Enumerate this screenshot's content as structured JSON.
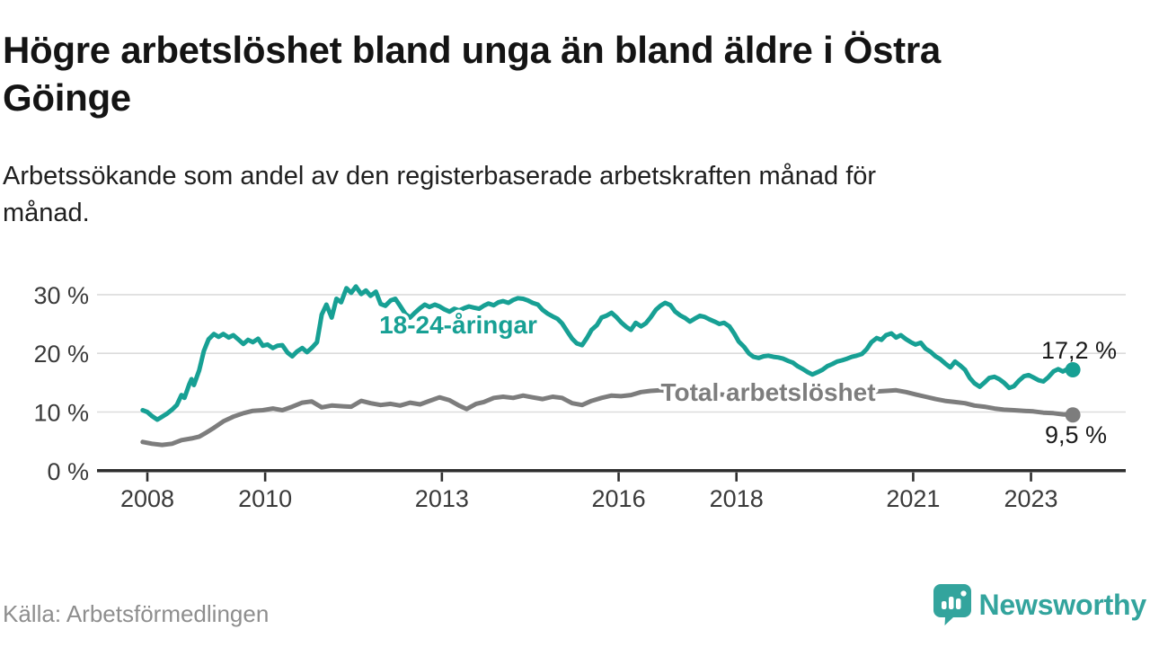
{
  "chart_data": {
    "type": "line",
    "title": "Högre arbetslöshet bland unga än bland äldre i Östra\nGöinge",
    "subtitle": "Arbetssökande som andel av den registerbaserade arbetskraften månad för\nmånad.",
    "source": "Källa: Arbetsförmedlingen",
    "unit": "%",
    "x_axis": {
      "type": "time-years",
      "range": [
        2007.2,
        2024.6
      ]
    },
    "ylim": [
      0,
      33
    ],
    "grid": "horizontal",
    "legend_position": "inline-labels",
    "yticks": [
      {
        "value": 0,
        "label": "0 %"
      },
      {
        "value": 10,
        "label": "10 %"
      },
      {
        "value": 20,
        "label": "20 %"
      },
      {
        "value": 30,
        "label": "30 %"
      }
    ],
    "xticks": [
      {
        "value": 2008,
        "label": "2008"
      },
      {
        "value": 2010,
        "label": "2010"
      },
      {
        "value": 2013,
        "label": "2013"
      },
      {
        "value": 2016,
        "label": "2016"
      },
      {
        "value": 2018,
        "label": "2018"
      },
      {
        "value": 2021,
        "label": "2021"
      },
      {
        "value": 2023,
        "label": "2023"
      }
    ],
    "series": [
      {
        "name": "18-24-åringar",
        "color": "#17a094",
        "end_value": 17.2,
        "end_label": "17,2 %",
        "points": [
          [
            2007.92,
            10.3
          ],
          [
            2008.0,
            10.0
          ],
          [
            2008.08,
            9.3
          ],
          [
            2008.17,
            8.7
          ],
          [
            2008.25,
            9.2
          ],
          [
            2008.33,
            9.7
          ],
          [
            2008.42,
            10.4
          ],
          [
            2008.5,
            11.2
          ],
          [
            2008.58,
            12.9
          ],
          [
            2008.63,
            12.4
          ],
          [
            2008.71,
            14.7
          ],
          [
            2008.75,
            15.6
          ],
          [
            2008.79,
            14.6
          ],
          [
            2008.88,
            17.1
          ],
          [
            2008.96,
            20.4
          ],
          [
            2009.04,
            22.4
          ],
          [
            2009.13,
            23.3
          ],
          [
            2009.21,
            22.8
          ],
          [
            2009.29,
            23.3
          ],
          [
            2009.38,
            22.7
          ],
          [
            2009.46,
            23.1
          ],
          [
            2009.54,
            22.4
          ],
          [
            2009.63,
            21.6
          ],
          [
            2009.71,
            22.3
          ],
          [
            2009.79,
            21.9
          ],
          [
            2009.88,
            22.5
          ],
          [
            2009.96,
            21.3
          ],
          [
            2010.04,
            21.5
          ],
          [
            2010.13,
            20.9
          ],
          [
            2010.21,
            21.3
          ],
          [
            2010.29,
            21.4
          ],
          [
            2010.38,
            20.1
          ],
          [
            2010.46,
            19.5
          ],
          [
            2010.54,
            20.3
          ],
          [
            2010.63,
            20.9
          ],
          [
            2010.71,
            20.2
          ],
          [
            2010.79,
            20.9
          ],
          [
            2010.88,
            21.9
          ],
          [
            2010.96,
            26.6
          ],
          [
            2011.04,
            28.3
          ],
          [
            2011.13,
            26.1
          ],
          [
            2011.21,
            29.3
          ],
          [
            2011.29,
            28.7
          ],
          [
            2011.38,
            31.1
          ],
          [
            2011.46,
            30.3
          ],
          [
            2011.54,
            31.4
          ],
          [
            2011.63,
            30.1
          ],
          [
            2011.71,
            30.7
          ],
          [
            2011.79,
            29.8
          ],
          [
            2011.88,
            30.5
          ],
          [
            2011.96,
            28.4
          ],
          [
            2012.04,
            28.1
          ],
          [
            2012.13,
            29.0
          ],
          [
            2012.21,
            29.3
          ],
          [
            2012.29,
            28.1
          ],
          [
            2012.38,
            26.7
          ],
          [
            2012.46,
            26.1
          ],
          [
            2012.54,
            26.9
          ],
          [
            2012.63,
            27.7
          ],
          [
            2012.71,
            28.3
          ],
          [
            2012.79,
            27.9
          ],
          [
            2012.88,
            28.3
          ],
          [
            2012.96,
            28.0
          ],
          [
            2013.04,
            27.5
          ],
          [
            2013.13,
            27.1
          ],
          [
            2013.21,
            27.6
          ],
          [
            2013.29,
            27.3
          ],
          [
            2013.38,
            27.7
          ],
          [
            2013.46,
            28.0
          ],
          [
            2013.54,
            27.8
          ],
          [
            2013.63,
            27.6
          ],
          [
            2013.71,
            28.1
          ],
          [
            2013.79,
            28.5
          ],
          [
            2013.88,
            28.2
          ],
          [
            2013.96,
            28.7
          ],
          [
            2014.04,
            28.9
          ],
          [
            2014.13,
            28.6
          ],
          [
            2014.21,
            29.1
          ],
          [
            2014.29,
            29.4
          ],
          [
            2014.38,
            29.3
          ],
          [
            2014.46,
            29.0
          ],
          [
            2014.54,
            28.6
          ],
          [
            2014.63,
            28.3
          ],
          [
            2014.71,
            27.4
          ],
          [
            2014.79,
            26.8
          ],
          [
            2014.88,
            26.3
          ],
          [
            2014.96,
            25.9
          ],
          [
            2015.04,
            25.1
          ],
          [
            2015.13,
            23.7
          ],
          [
            2015.21,
            22.5
          ],
          [
            2015.29,
            21.7
          ],
          [
            2015.38,
            21.4
          ],
          [
            2015.46,
            22.6
          ],
          [
            2015.54,
            24.0
          ],
          [
            2015.63,
            24.8
          ],
          [
            2015.71,
            26.1
          ],
          [
            2015.79,
            26.4
          ],
          [
            2015.88,
            26.9
          ],
          [
            2015.96,
            26.2
          ],
          [
            2016.04,
            25.3
          ],
          [
            2016.13,
            24.5
          ],
          [
            2016.21,
            24.0
          ],
          [
            2016.29,
            25.2
          ],
          [
            2016.38,
            24.6
          ],
          [
            2016.46,
            25.1
          ],
          [
            2016.54,
            26.1
          ],
          [
            2016.63,
            27.4
          ],
          [
            2016.71,
            28.1
          ],
          [
            2016.79,
            28.6
          ],
          [
            2016.88,
            28.2
          ],
          [
            2016.96,
            27.1
          ],
          [
            2017.04,
            26.5
          ],
          [
            2017.13,
            26.0
          ],
          [
            2017.21,
            25.4
          ],
          [
            2017.29,
            25.9
          ],
          [
            2017.38,
            26.4
          ],
          [
            2017.46,
            26.2
          ],
          [
            2017.54,
            25.8
          ],
          [
            2017.63,
            25.4
          ],
          [
            2017.71,
            25.0
          ],
          [
            2017.79,
            25.2
          ],
          [
            2017.88,
            24.6
          ],
          [
            2017.96,
            23.4
          ],
          [
            2018.04,
            22.0
          ],
          [
            2018.13,
            21.1
          ],
          [
            2018.21,
            20.0
          ],
          [
            2018.29,
            19.4
          ],
          [
            2018.38,
            19.2
          ],
          [
            2018.46,
            19.5
          ],
          [
            2018.54,
            19.6
          ],
          [
            2018.63,
            19.4
          ],
          [
            2018.71,
            19.3
          ],
          [
            2018.79,
            19.1
          ],
          [
            2018.88,
            18.7
          ],
          [
            2018.96,
            18.4
          ],
          [
            2019.04,
            17.8
          ],
          [
            2019.13,
            17.3
          ],
          [
            2019.21,
            16.8
          ],
          [
            2019.29,
            16.4
          ],
          [
            2019.38,
            16.8
          ],
          [
            2019.46,
            17.2
          ],
          [
            2019.54,
            17.8
          ],
          [
            2019.63,
            18.2
          ],
          [
            2019.71,
            18.6
          ],
          [
            2019.79,
            18.8
          ],
          [
            2019.88,
            19.1
          ],
          [
            2019.96,
            19.4
          ],
          [
            2020.04,
            19.6
          ],
          [
            2020.13,
            19.9
          ],
          [
            2020.21,
            20.7
          ],
          [
            2020.29,
            21.9
          ],
          [
            2020.38,
            22.6
          ],
          [
            2020.46,
            22.3
          ],
          [
            2020.54,
            23.1
          ],
          [
            2020.63,
            23.4
          ],
          [
            2020.71,
            22.7
          ],
          [
            2020.79,
            23.1
          ],
          [
            2020.88,
            22.4
          ],
          [
            2020.96,
            21.9
          ],
          [
            2021.04,
            21.5
          ],
          [
            2021.13,
            21.8
          ],
          [
            2021.21,
            20.8
          ],
          [
            2021.29,
            20.3
          ],
          [
            2021.38,
            19.5
          ],
          [
            2021.46,
            19.0
          ],
          [
            2021.54,
            18.3
          ],
          [
            2021.63,
            17.6
          ],
          [
            2021.71,
            18.6
          ],
          [
            2021.79,
            18.0
          ],
          [
            2021.88,
            17.2
          ],
          [
            2021.96,
            15.8
          ],
          [
            2022.04,
            14.9
          ],
          [
            2022.13,
            14.3
          ],
          [
            2022.21,
            15.0
          ],
          [
            2022.29,
            15.8
          ],
          [
            2022.38,
            16.0
          ],
          [
            2022.46,
            15.6
          ],
          [
            2022.54,
            15.0
          ],
          [
            2022.63,
            14.1
          ],
          [
            2022.71,
            14.4
          ],
          [
            2022.79,
            15.3
          ],
          [
            2022.88,
            16.1
          ],
          [
            2022.96,
            16.3
          ],
          [
            2023.04,
            15.9
          ],
          [
            2023.13,
            15.4
          ],
          [
            2023.21,
            15.2
          ],
          [
            2023.29,
            15.9
          ],
          [
            2023.38,
            16.9
          ],
          [
            2023.46,
            17.3
          ],
          [
            2023.54,
            16.9
          ],
          [
            2023.63,
            17.4
          ],
          [
            2023.71,
            17.2
          ]
        ]
      },
      {
        "name": "Total arbetslöshet",
        "color": "#7d7d7d",
        "end_value": 9.5,
        "end_label": "9,5 %",
        "points": [
          [
            2007.92,
            4.9
          ],
          [
            2008.08,
            4.6
          ],
          [
            2008.25,
            4.4
          ],
          [
            2008.42,
            4.6
          ],
          [
            2008.58,
            5.2
          ],
          [
            2008.75,
            5.5
          ],
          [
            2008.88,
            5.8
          ],
          [
            2009.0,
            6.5
          ],
          [
            2009.13,
            7.3
          ],
          [
            2009.29,
            8.4
          ],
          [
            2009.46,
            9.2
          ],
          [
            2009.63,
            9.8
          ],
          [
            2009.79,
            10.2
          ],
          [
            2009.96,
            10.3
          ],
          [
            2010.13,
            10.6
          ],
          [
            2010.29,
            10.3
          ],
          [
            2010.46,
            10.9
          ],
          [
            2010.63,
            11.6
          ],
          [
            2010.79,
            11.8
          ],
          [
            2010.96,
            10.8
          ],
          [
            2011.13,
            11.1
          ],
          [
            2011.29,
            11.0
          ],
          [
            2011.46,
            10.9
          ],
          [
            2011.63,
            11.9
          ],
          [
            2011.79,
            11.5
          ],
          [
            2011.96,
            11.2
          ],
          [
            2012.13,
            11.4
          ],
          [
            2012.29,
            11.1
          ],
          [
            2012.46,
            11.6
          ],
          [
            2012.63,
            11.3
          ],
          [
            2012.79,
            11.9
          ],
          [
            2012.96,
            12.5
          ],
          [
            2013.13,
            12.0
          ],
          [
            2013.29,
            11.1
          ],
          [
            2013.42,
            10.5
          ],
          [
            2013.58,
            11.4
          ],
          [
            2013.71,
            11.7
          ],
          [
            2013.88,
            12.4
          ],
          [
            2014.04,
            12.6
          ],
          [
            2014.21,
            12.4
          ],
          [
            2014.38,
            12.8
          ],
          [
            2014.54,
            12.5
          ],
          [
            2014.71,
            12.2
          ],
          [
            2014.88,
            12.6
          ],
          [
            2015.04,
            12.4
          ],
          [
            2015.21,
            11.5
          ],
          [
            2015.38,
            11.2
          ],
          [
            2015.54,
            11.9
          ],
          [
            2015.71,
            12.4
          ],
          [
            2015.88,
            12.8
          ],
          [
            2016.04,
            12.7
          ],
          [
            2016.21,
            12.9
          ],
          [
            2016.38,
            13.4
          ],
          [
            2016.54,
            13.6
          ],
          [
            2016.71,
            13.7
          ],
          [
            2016.88,
            13.5
          ],
          [
            2017.04,
            13.3
          ],
          [
            2017.21,
            13.2
          ],
          [
            2017.38,
            13.3
          ],
          [
            2017.54,
            13.1
          ],
          [
            2017.71,
            13.0
          ],
          [
            2017.88,
            12.9
          ],
          [
            2018.04,
            12.8
          ],
          [
            2018.21,
            12.7
          ],
          [
            2018.38,
            12.8
          ],
          [
            2018.54,
            12.7
          ],
          [
            2018.71,
            12.6
          ],
          [
            2018.88,
            12.6
          ],
          [
            2019.04,
            12.5
          ],
          [
            2019.21,
            12.5
          ],
          [
            2019.38,
            12.6
          ],
          [
            2019.54,
            12.7
          ],
          [
            2019.71,
            12.9
          ],
          [
            2019.88,
            13.0
          ],
          [
            2020.04,
            13.1
          ],
          [
            2020.21,
            13.3
          ],
          [
            2020.38,
            13.5
          ],
          [
            2020.54,
            13.6
          ],
          [
            2020.71,
            13.7
          ],
          [
            2020.88,
            13.4
          ],
          [
            2021.04,
            13.0
          ],
          [
            2021.21,
            12.6
          ],
          [
            2021.38,
            12.2
          ],
          [
            2021.54,
            11.9
          ],
          [
            2021.71,
            11.7
          ],
          [
            2021.88,
            11.5
          ],
          [
            2022.04,
            11.1
          ],
          [
            2022.21,
            10.9
          ],
          [
            2022.38,
            10.6
          ],
          [
            2022.54,
            10.4
          ],
          [
            2022.71,
            10.3
          ],
          [
            2022.88,
            10.2
          ],
          [
            2023.04,
            10.1
          ],
          [
            2023.21,
            9.9
          ],
          [
            2023.38,
            9.8
          ],
          [
            2023.54,
            9.6
          ],
          [
            2023.71,
            9.5
          ]
        ]
      }
    ]
  },
  "footer": {
    "brand": "Newsworthy",
    "brand_color": "#33a49d"
  }
}
